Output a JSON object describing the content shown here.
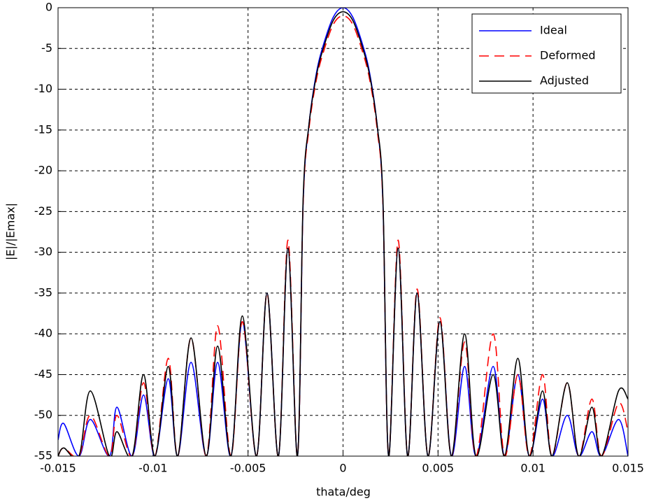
{
  "chart_data": {
    "type": "line",
    "xlabel": "thata/deg",
    "ylabel": "|E|/|Emax|",
    "x": [
      -0.015,
      -0.0147,
      -0.0139,
      -0.0133,
      -0.0123,
      -0.0119,
      -0.0111,
      -0.0105,
      -0.0099,
      -0.0092,
      -0.0087,
      -0.008,
      -0.0072,
      -0.0066,
      -0.0059,
      -0.0053,
      -0.00455,
      -0.004,
      -0.0034,
      -0.0029,
      -0.0024,
      -0.0021,
      -0.0018,
      -0.0014,
      -0.001,
      -0.0005,
      0,
      0.0005,
      0.001,
      0.0014,
      0.0018,
      0.0021,
      0.0024,
      0.0029,
      0.0034,
      0.0039,
      0.00447,
      0.0051,
      0.0057,
      0.0064,
      0.007,
      0.0079,
      0.0085,
      0.0092,
      0.0098,
      0.0105,
      0.011,
      0.0118,
      0.0124,
      0.0131,
      0.0136,
      0.0145,
      0.015
    ],
    "series": [
      {
        "name": "Ideal",
        "color": "#0000ff",
        "dash": false,
        "values": [
          -53,
          -51,
          -55,
          -50.5,
          -55,
          -49,
          -55,
          -47.5,
          -55,
          -45.5,
          -55,
          -43.5,
          -55,
          -43.5,
          -55,
          -38.5,
          -55,
          -35,
          -55,
          -29.5,
          -55,
          -24,
          -14.5,
          -8,
          -4.3,
          -1.1,
          0,
          -1.1,
          -4.3,
          -8,
          -14.5,
          -24,
          -55,
          -29.5,
          -55,
          -35,
          -55,
          -38.5,
          -55,
          -44,
          -55,
          -44,
          -55,
          -45,
          -55,
          -48,
          -55,
          -50,
          -55,
          -52,
          -55,
          -50.5,
          -55
        ]
      },
      {
        "name": "Deformed",
        "color": "#ff0000",
        "dash": true,
        "values": [
          -55,
          -54,
          -55,
          -50,
          -55,
          -50,
          -55,
          -46,
          -55,
          -43,
          -55,
          -40.5,
          -55,
          -39,
          -55,
          -38.5,
          -55,
          -35,
          -55,
          -28.5,
          -55,
          -24,
          -15,
          -8.8,
          -5.2,
          -2,
          -1,
          -2,
          -5.2,
          -8.8,
          -15,
          -24,
          -55,
          -28.5,
          -55,
          -34.5,
          -55,
          -38,
          -55,
          -41,
          -55,
          -40,
          -55,
          -45,
          -55,
          -45,
          -55,
          -46,
          -55,
          -48,
          -55,
          -48.5,
          -52
        ]
      },
      {
        "name": "Adjusted",
        "color": "#000000",
        "dash": false,
        "values": [
          -55,
          -54,
          -55,
          -47,
          -55,
          -52,
          -55,
          -45,
          -55,
          -44,
          -55,
          -40.5,
          -55,
          -41.5,
          -55,
          -37.8,
          -55,
          -35,
          -55,
          -29.5,
          -55,
          -23.5,
          -14.5,
          -8.3,
          -4.7,
          -1.5,
          -0.5,
          -1.5,
          -4.7,
          -8.3,
          -14.5,
          -23.5,
          -55,
          -29.5,
          -55,
          -35,
          -55,
          -38.5,
          -55,
          -40,
          -55,
          -45,
          -55,
          -43,
          -55,
          -47,
          -55,
          -46,
          -55,
          -49,
          -55,
          -47,
          -48
        ]
      }
    ],
    "xlim": [
      -0.015,
      0.015
    ],
    "ylim": [
      -55,
      0
    ],
    "xticks": [
      -0.015,
      -0.01,
      -0.005,
      0,
      0.005,
      0.01,
      0.015
    ],
    "yticks": [
      -55,
      -50,
      -45,
      -40,
      -35,
      -30,
      -25,
      -20,
      -15,
      -10,
      -5,
      0
    ],
    "grid": true,
    "legend": "top-right"
  }
}
